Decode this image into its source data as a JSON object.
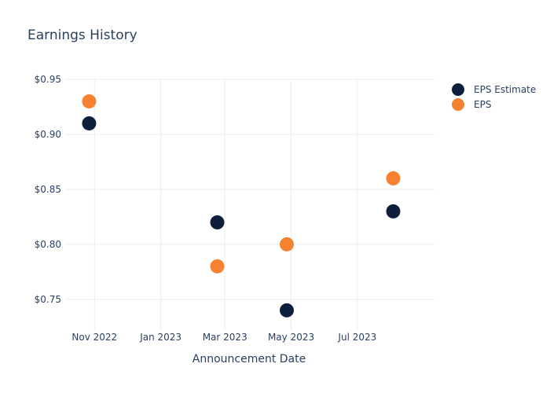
{
  "chart_data": {
    "type": "scatter",
    "title": "Earnings History",
    "xlabel": "Announcement Date",
    "ylabel": "",
    "x_ticks": [
      "2022-11-01",
      "2023-01-01",
      "2023-03-01",
      "2023-05-01",
      "2023-07-01"
    ],
    "x_tick_labels": [
      "Nov 2022",
      "Jan 2023",
      "Mar 2023",
      "May 2023",
      "Jul 2023"
    ],
    "xlim": [
      "2022-10-05",
      "2023-09-10"
    ],
    "y_ticks": [
      0.75,
      0.8,
      0.85,
      0.9,
      0.95
    ],
    "y_tick_labels": [
      "$0.75",
      "$0.80",
      "$0.85",
      "$0.90",
      "$0.95"
    ],
    "ylim": [
      0.722,
      0.95
    ],
    "grid": true,
    "legend_position": "top-right",
    "series": [
      {
        "name": "EPS Estimate",
        "color": "#0d1f3c",
        "x": [
          "2022-10-27",
          "2023-02-22",
          "2023-04-27",
          "2023-08-03"
        ],
        "y": [
          0.91,
          0.82,
          0.74,
          0.83
        ]
      },
      {
        "name": "EPS",
        "color": "#f58231",
        "x": [
          "2022-10-27",
          "2023-02-22",
          "2023-04-27",
          "2023-08-03"
        ],
        "y": [
          0.93,
          0.78,
          0.8,
          0.86
        ]
      }
    ]
  }
}
